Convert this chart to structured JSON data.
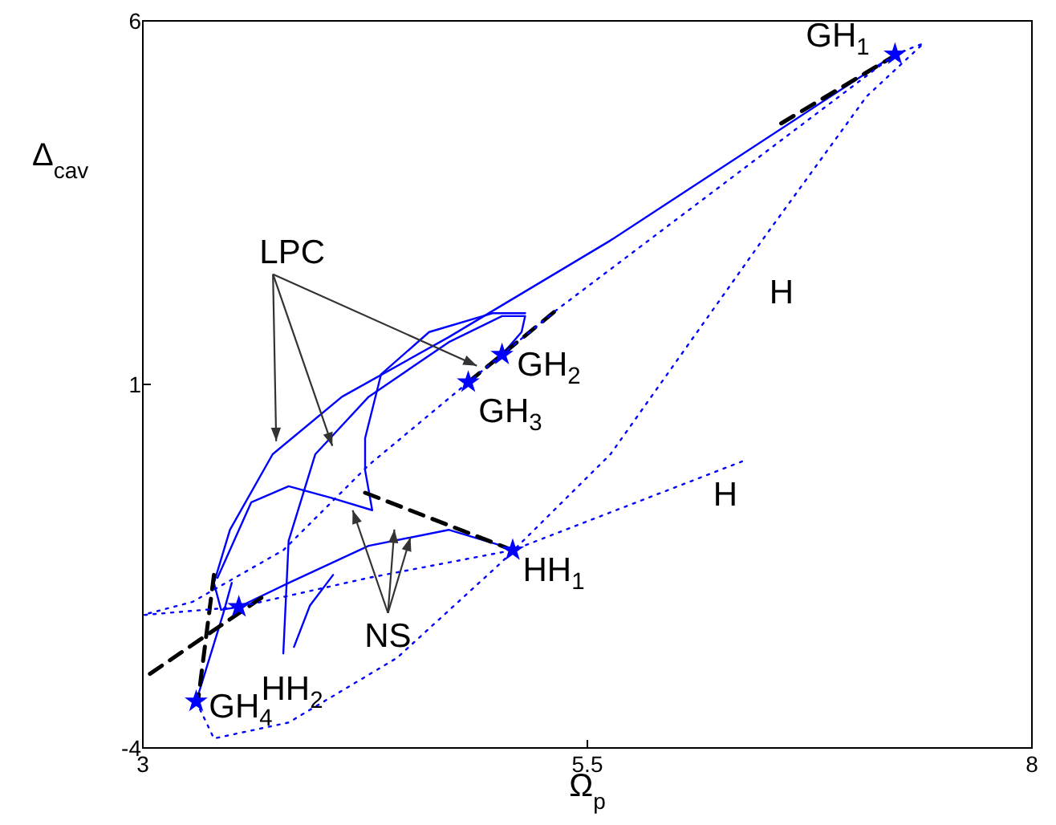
{
  "chart_data": {
    "type": "line",
    "xlabel": "Ω$_{p}$",
    "ylabel": "Δ$_{cav}$",
    "xlim": [
      3,
      8
    ],
    "xticks": [
      3,
      5.5,
      8
    ],
    "ylim": [
      -4,
      6
    ],
    "yticks": [
      -4,
      1,
      6
    ],
    "series": [
      {
        "color": "#0000ff",
        "line_style": "solid",
        "x": [
          7.23,
          5.63,
          4.72,
          4.12,
          3.73,
          3.49,
          3.4,
          3.44,
          3.54,
          3.82,
          4.27,
          4.72,
          5.02,
          5.08
        ],
        "values": [
          5.54,
          2.98,
          1.65,
          0.83,
          0.04,
          -1.0,
          -1.73,
          -2.1,
          -2.06,
          -1.73,
          -1.22,
          -1.0,
          -1.22,
          -1.28
        ]
      },
      {
        "color": "#0000ff",
        "line_style": "solid",
        "x": [
          3.79,
          3.82,
          3.97,
          4.27,
          4.72,
          5.02,
          5.15,
          5.13,
          5.02
        ],
        "values": [
          -2.7,
          -1.15,
          0.04,
          0.83,
          1.58,
          1.94,
          1.94,
          1.72,
          1.41
        ]
      },
      {
        "color": "#0000ff",
        "line_style": "solid",
        "x": [
          3.42,
          3.61,
          3.82,
          4.06,
          4.29,
          4.25,
          4.25,
          4.34,
          4.61,
          4.97,
          5.15
        ],
        "values": [
          -1.66,
          -0.62,
          -0.4,
          -0.56,
          -0.73,
          -0.18,
          0.26,
          1.14,
          1.72,
          1.98,
          1.98
        ]
      },
      {
        "color": "#0000ff",
        "line_style": "solid",
        "x": [
          3.85,
          3.94,
          4.07
        ],
        "values": [
          -2.61,
          -2.04,
          -1.62
        ]
      },
      {
        "color": "#0000ff",
        "line_style": "solid",
        "x": [
          3.3,
          3.45,
          3.5
        ],
        "values": [
          -3.36,
          -2.17,
          -1.73
        ]
      },
      {
        "color": "#000000",
        "line_style": "dashed",
        "x": [
          6.59,
          7.22
        ],
        "values": [
          4.59,
          5.51
        ]
      },
      {
        "color": "#000000",
        "line_style": "dashed",
        "x": [
          4.83,
          5.33
        ],
        "values": [
          1.03,
          2.03
        ]
      },
      {
        "color": "#000000",
        "line_style": "dashed",
        "x": [
          4.25,
          5.08
        ],
        "values": [
          -0.49,
          -1.28
        ]
      },
      {
        "color": "#000000",
        "line_style": "dashed",
        "x": [
          3.04,
          3.7
        ],
        "values": [
          -2.98,
          -1.88
        ]
      },
      {
        "color": "#000000",
        "line_style": "dashed",
        "x": [
          3.4,
          3.31
        ],
        "values": [
          -1.62,
          -3.36
        ]
      },
      {
        "color": "#0000ff",
        "line_style": "dotted",
        "x": [
          3.01,
          3.54,
          4.27,
          5.08,
          6.38
        ],
        "values": [
          -2.17,
          -2.06,
          -1.66,
          -1.28,
          -0.05
        ]
      },
      {
        "color": "#0000ff",
        "line_style": "dotted",
        "x": [
          3.3,
          3.4,
          3.82,
          4.43,
          5.02,
          5.63,
          6.5,
          7.07,
          7.39,
          7.23
        ],
        "values": [
          -3.36,
          -3.87,
          -3.65,
          -2.76,
          -1.44,
          0.04,
          3.04,
          4.96,
          5.69,
          5.54
        ]
      },
      {
        "color": "#0000ff",
        "line_style": "dotted",
        "x": [
          7.23,
          5.33,
          4.83,
          4.27,
          3.79,
          3.28,
          3.0
        ],
        "values": [
          5.54,
          2.03,
          1.03,
          -0.11,
          -1.28,
          -1.99,
          -2.17
        ]
      },
      {
        "type": "scatter",
        "color": "#0000ff",
        "marker": "star",
        "x": [
          7.23,
          5.02,
          4.83,
          5.08,
          3.54,
          3.3
        ],
        "values": [
          5.54,
          1.41,
          1.03,
          -1.28,
          -2.06,
          -3.36
        ]
      }
    ],
    "annotations": [
      "GH$_{1}$",
      "GH$_{2}$",
      "GH$_{3}$",
      "HH$_{1}$",
      "HH$_{2}$",
      "GH$_{4}$",
      {
        "text": "LPC",
        "x": 3.75,
        "y": 0.22
      },
      {
        "text": "NS",
        "x": 4.18,
        "y": -0.73
      },
      "H",
      "H"
    ]
  }
}
